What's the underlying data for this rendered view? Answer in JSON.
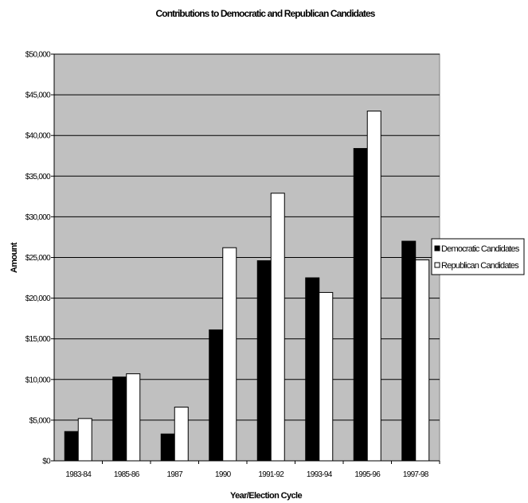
{
  "chart_data": {
    "type": "bar",
    "title": "Contributions to Democratic and Republican Candidates",
    "xlabel": "Year/Election Cycle",
    "ylabel": "Amount",
    "ylim": [
      0,
      50000
    ],
    "yticks": [
      "$0",
      "$5,000",
      "$10,000",
      "$15,000",
      "$20,000",
      "$25,000",
      "$30,000",
      "$35,000",
      "$40,000",
      "$45,000",
      "$50,000"
    ],
    "categories": [
      "1983-84",
      "1985-86",
      "1987",
      "1990",
      "1991-92",
      "1993-94",
      "1995-96",
      "1997-98"
    ],
    "series": [
      {
        "name": "Democratic Candidates",
        "values": [
          3600,
          10300,
          3300,
          16100,
          24600,
          22500,
          38400,
          27000
        ]
      },
      {
        "name": "Republican Candidates",
        "values": [
          5200,
          10700,
          6600,
          26200,
          32900,
          20700,
          43000,
          24700
        ]
      }
    ],
    "grid": true,
    "legend_position": "right",
    "colors": {
      "plot_background": "#c0c0c0",
      "democratic": "#000000",
      "republican": "#ffffff",
      "gridline": "#000000"
    }
  }
}
